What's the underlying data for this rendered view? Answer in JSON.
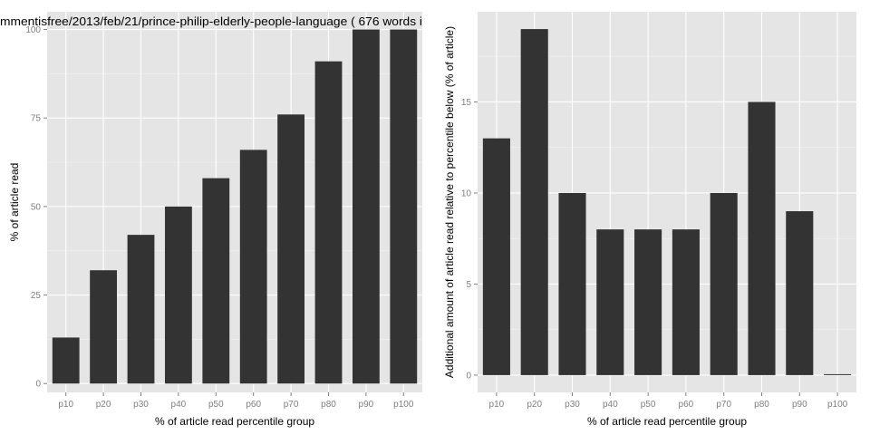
{
  "chart_data": [
    {
      "type": "bar",
      "title": "mmentisfree/2013/feb/21/prince-philip-elderly-people-language ( 676 words i",
      "xlabel": "% of article read percentile group",
      "ylabel": "% of article read",
      "categories": [
        "p10",
        "p20",
        "p30",
        "p40",
        "p50",
        "p60",
        "p70",
        "p80",
        "p90",
        "p100"
      ],
      "values": [
        13,
        32,
        42,
        50,
        58,
        66,
        76,
        91,
        100,
        100
      ],
      "ylim": [
        -2.5,
        105
      ],
      "yticks": [
        0,
        25,
        50,
        75,
        100
      ],
      "bar_color": "#333333",
      "panel_color": "#e5e5e5",
      "grid": true
    },
    {
      "type": "bar",
      "title": "",
      "xlabel": "% of article read percentile group",
      "ylabel": "Additional amount of article read relative to percentile below (% of article)",
      "categories": [
        "p10",
        "p20",
        "p30",
        "p40",
        "p50",
        "p60",
        "p70",
        "p80",
        "p90",
        "p100"
      ],
      "values": [
        13,
        19,
        10,
        8,
        8,
        8,
        10,
        15,
        9,
        0
      ],
      "ylim": [
        -0.95,
        19.95
      ],
      "yticks": [
        0,
        5,
        10,
        15
      ],
      "bar_color": "#333333",
      "panel_color": "#e5e5e5",
      "grid": true
    }
  ]
}
